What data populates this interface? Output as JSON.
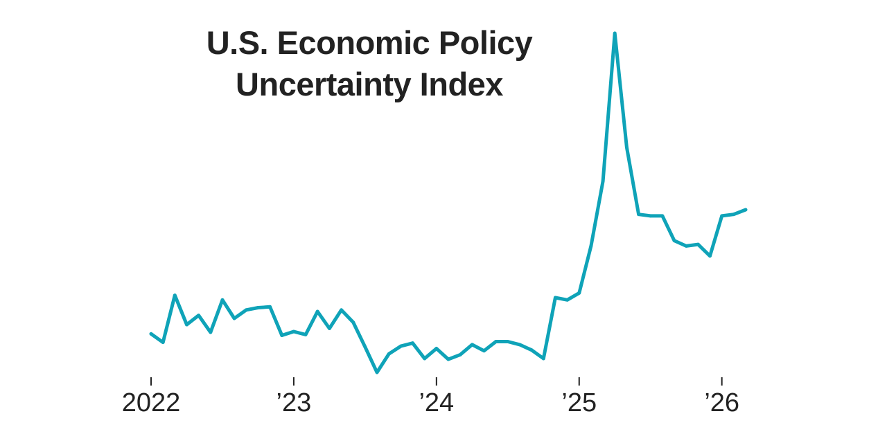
{
  "chart_data": {
    "type": "line",
    "title_lines": [
      "U.S. Economic Policy",
      "Uncertainty Index"
    ],
    "xlabel": "",
    "ylabel": "",
    "grid": false,
    "line_color": "#0fa3b8",
    "text_color": "#222222",
    "x_range": [
      "2022-01",
      "2026-03"
    ],
    "ylim": [
      100,
      500
    ],
    "x_ticks": [
      {
        "date": "2022-01",
        "label": "2022"
      },
      {
        "date": "2023-01",
        "label": "’23"
      },
      {
        "date": "2024-01",
        "label": "’24"
      },
      {
        "date": "2025-01",
        "label": "’25"
      },
      {
        "date": "2026-01",
        "label": "’26"
      }
    ],
    "series": [
      {
        "x": [
          "2022-01",
          "2022-02",
          "2022-03",
          "2022-04",
          "2022-05",
          "2022-06",
          "2022-07",
          "2022-08",
          "2022-09",
          "2022-10",
          "2022-11",
          "2022-12",
          "2023-01",
          "2023-02",
          "2023-03",
          "2023-04",
          "2023-05",
          "2023-06",
          "2023-07",
          "2023-08",
          "2023-09",
          "2023-10",
          "2023-11",
          "2023-12",
          "2024-01",
          "2024-02",
          "2024-03",
          "2024-04",
          "2024-05",
          "2024-06",
          "2024-07",
          "2024-08",
          "2024-09",
          "2024-10",
          "2024-11",
          "2024-12",
          "2025-01",
          "2025-02",
          "2025-03",
          "2025-04",
          "2025-05",
          "2025-06",
          "2025-07",
          "2025-08",
          "2025-09",
          "2025-10",
          "2025-11",
          "2025-12",
          "2026-01",
          "2026-02",
          "2026-03"
        ],
        "values": [
          158,
          147,
          208,
          170,
          182,
          160,
          202,
          178,
          189,
          192,
          193,
          156,
          161,
          157,
          187,
          165,
          189,
          173,
          141,
          108,
          132,
          142,
          146,
          126,
          139,
          125,
          131,
          144,
          136,
          148,
          148,
          144,
          137,
          126,
          205,
          202,
          211,
          272,
          356,
          548,
          400,
          313,
          311,
          311,
          279,
          272,
          274,
          259,
          311,
          313,
          319
        ]
      }
    ]
  }
}
